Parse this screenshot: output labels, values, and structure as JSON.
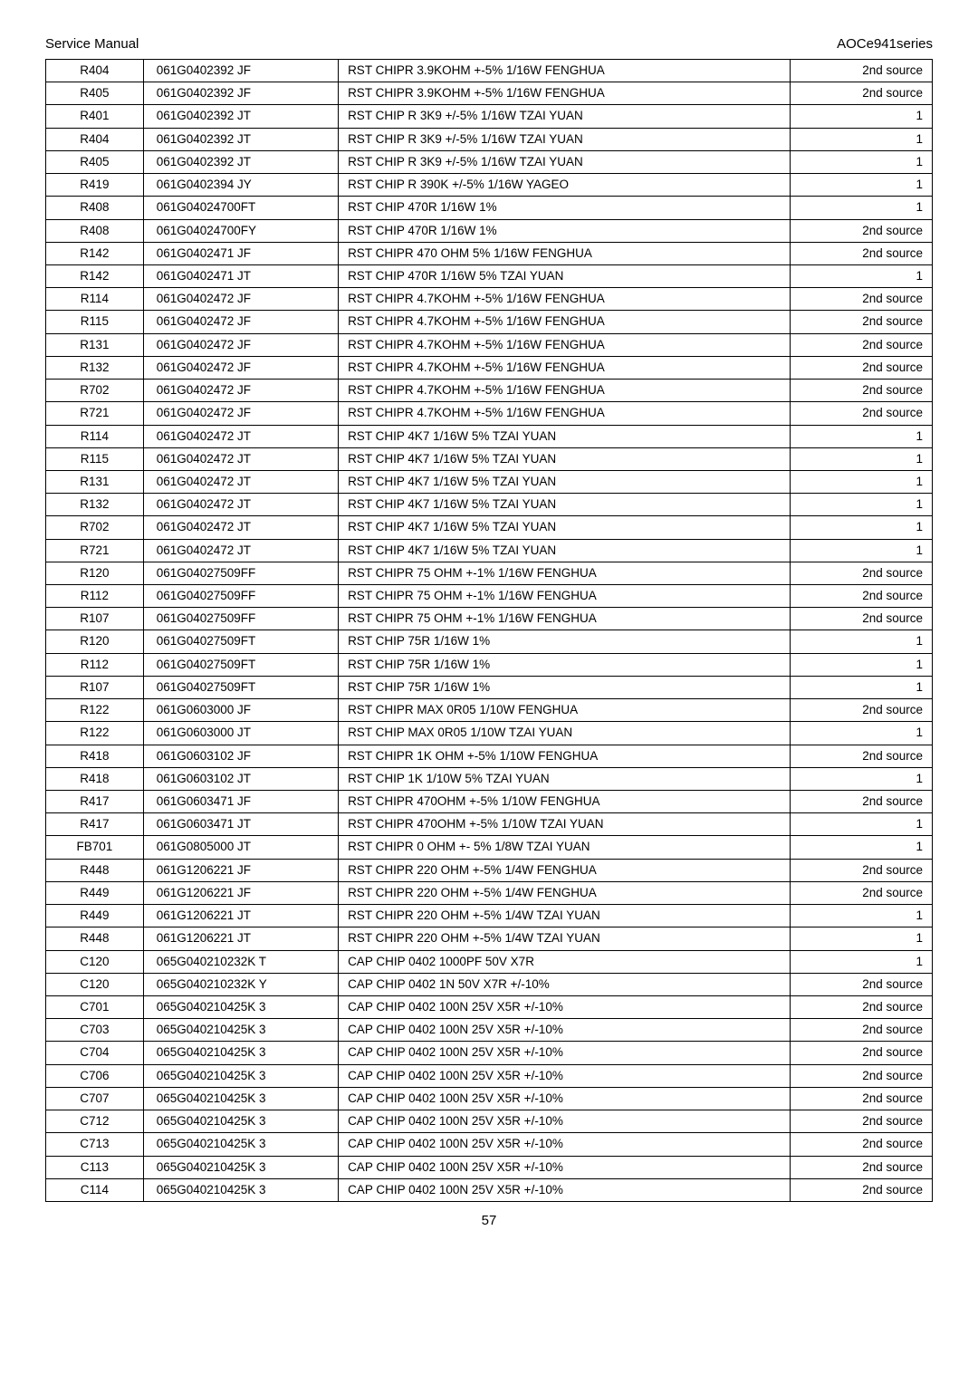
{
  "header": {
    "left": "Service Manual",
    "right": "AOCe941series"
  },
  "footer": {
    "page": "57"
  },
  "rows": [
    {
      "ref": "R404",
      "part": "061G0402392 JF",
      "desc": "RST CHIPR 3.9KOHM +-5% 1/16W FENGHUA",
      "src": "2nd source"
    },
    {
      "ref": "R405",
      "part": "061G0402392 JF",
      "desc": "RST CHIPR 3.9KOHM +-5% 1/16W FENGHUA",
      "src": "2nd source"
    },
    {
      "ref": "R401",
      "part": "061G0402392 JT",
      "desc": "RST CHIP R 3K9 +/-5% 1/16W    TZAI YUAN",
      "src": "1"
    },
    {
      "ref": "R404",
      "part": "061G0402392 JT",
      "desc": "RST CHIP R 3K9 +/-5% 1/16W    TZAI YUAN",
      "src": "1"
    },
    {
      "ref": "R405",
      "part": "061G0402392 JT",
      "desc": "RST CHIP R 3K9 +/-5% 1/16W    TZAI YUAN",
      "src": "1"
    },
    {
      "ref": "R419",
      "part": "061G0402394 JY",
      "desc": "RST CHIP R 390K +/-5% 1/16W YAGEO",
      "src": "1"
    },
    {
      "ref": "R408",
      "part": "061G04024700FT",
      "desc": "RST CHIP 470R 1/16W 1%",
      "src": "1"
    },
    {
      "ref": "R408",
      "part": "061G04024700FY",
      "desc": "RST CHIP 470R 1/16W 1%",
      "src": "2nd source"
    },
    {
      "ref": "R142",
      "part": "061G0402471 JF",
      "desc": "RST CHIPR 470 OHM 5% 1/16W FENGHUA",
      "src": "2nd source"
    },
    {
      "ref": "R142",
      "part": "061G0402471 JT",
      "desc": "RST CHIP 470R 1/16W 5% TZAI YUAN",
      "src": "1"
    },
    {
      "ref": "R114",
      "part": "061G0402472 JF",
      "desc": "RST CHIPR 4.7KOHM +-5% 1/16W FENGHUA",
      "src": "2nd source"
    },
    {
      "ref": "R115",
      "part": "061G0402472 JF",
      "desc": "RST CHIPR 4.7KOHM +-5% 1/16W FENGHUA",
      "src": "2nd source"
    },
    {
      "ref": "R131",
      "part": "061G0402472 JF",
      "desc": "RST CHIPR 4.7KOHM +-5% 1/16W FENGHUA",
      "src": "2nd source"
    },
    {
      "ref": "R132",
      "part": "061G0402472 JF",
      "desc": "RST CHIPR 4.7KOHM +-5% 1/16W FENGHUA",
      "src": "2nd source"
    },
    {
      "ref": "R702",
      "part": "061G0402472 JF",
      "desc": "RST CHIPR 4.7KOHM +-5% 1/16W FENGHUA",
      "src": "2nd source"
    },
    {
      "ref": "R721",
      "part": "061G0402472 JF",
      "desc": "RST CHIPR 4.7KOHM +-5% 1/16W FENGHUA",
      "src": "2nd source"
    },
    {
      "ref": "R114",
      "part": "061G0402472 JT",
      "desc": "RST CHIP 4K7 1/16W 5% TZAI YUAN",
      "src": "1"
    },
    {
      "ref": "R115",
      "part": "061G0402472 JT",
      "desc": "RST CHIP 4K7 1/16W 5% TZAI YUAN",
      "src": "1"
    },
    {
      "ref": "R131",
      "part": "061G0402472 JT",
      "desc": "RST CHIP 4K7 1/16W 5% TZAI YUAN",
      "src": "1"
    },
    {
      "ref": "R132",
      "part": "061G0402472 JT",
      "desc": "RST CHIP 4K7 1/16W 5% TZAI YUAN",
      "src": "1"
    },
    {
      "ref": "R702",
      "part": "061G0402472 JT",
      "desc": "RST CHIP 4K7 1/16W 5% TZAI YUAN",
      "src": "1"
    },
    {
      "ref": "R721",
      "part": "061G0402472 JT",
      "desc": "RST CHIP 4K7 1/16W 5% TZAI YUAN",
      "src": "1"
    },
    {
      "ref": "R120",
      "part": "061G04027509FF",
      "desc": "RST CHIPR 75 OHM +-1% 1/16W FENGHUA",
      "src": "2nd source"
    },
    {
      "ref": "R112",
      "part": "061G04027509FF",
      "desc": "RST CHIPR 75 OHM +-1% 1/16W FENGHUA",
      "src": "2nd source"
    },
    {
      "ref": "R107",
      "part": "061G04027509FF",
      "desc": "RST CHIPR 75 OHM +-1% 1/16W FENGHUA",
      "src": "2nd source"
    },
    {
      "ref": "R120",
      "part": "061G04027509FT",
      "desc": "RST CHIP 75R 1/16W 1%",
      "src": "1"
    },
    {
      "ref": "R112",
      "part": "061G04027509FT",
      "desc": "RST CHIP 75R 1/16W 1%",
      "src": "1"
    },
    {
      "ref": "R107",
      "part": "061G04027509FT",
      "desc": "RST CHIP 75R 1/16W 1%",
      "src": "1"
    },
    {
      "ref": "R122",
      "part": "061G0603000 JF",
      "desc": "RST CHIPR MAX 0R05 1/10W FENGHUA",
      "src": "2nd source"
    },
    {
      "ref": "R122",
      "part": "061G0603000 JT",
      "desc": "RST CHIP MAX    0R05 1/10W TZAI YUAN",
      "src": "1"
    },
    {
      "ref": "R418",
      "part": "061G0603102 JF",
      "desc": "RST CHIPR 1K OHM +-5% 1/10W FENGHUA",
      "src": "2nd source"
    },
    {
      "ref": "R418",
      "part": "061G0603102 JT",
      "desc": "RST CHIP 1K 1/10W 5% TZAI YUAN",
      "src": "1"
    },
    {
      "ref": "R417",
      "part": "061G0603471 JF",
      "desc": "RST CHIPR 470OHM +-5% 1/10W FENGHUA",
      "src": "2nd source"
    },
    {
      "ref": "R417",
      "part": "061G0603471 JT",
      "desc": "RST CHIPR 470OHM +-5% 1/10W TZAI YUAN",
      "src": "1"
    },
    {
      "ref": "FB701",
      "part": "061G0805000 JT",
      "desc": "RST CHIPR 0 OHM +- 5% 1/8W      TZAI YUAN",
      "src": "1"
    },
    {
      "ref": "R448",
      "part": "061G1206221 JF",
      "desc": "RST CHIPR 220 OHM +-5% 1/4W FENGHUA",
      "src": "2nd source"
    },
    {
      "ref": "R449",
      "part": "061G1206221 JF",
      "desc": "RST CHIPR 220 OHM +-5% 1/4W FENGHUA",
      "src": "2nd source"
    },
    {
      "ref": "R449",
      "part": "061G1206221 JT",
      "desc": "RST CHIPR 220 OHM +-5% 1/4W TZAI YUAN",
      "src": "1"
    },
    {
      "ref": "R448",
      "part": "061G1206221 JT",
      "desc": "RST CHIPR 220 OHM +-5% 1/4W TZAI YUAN",
      "src": "1"
    },
    {
      "ref": "C120",
      "part": "065G040210232K      T",
      "desc": "CAP CHIP 0402 1000PF 50V X7R",
      "src": "1"
    },
    {
      "ref": "C120",
      "part": "065G040210232K      Y",
      "desc": "CAP CHIP 0402 1N 50V X7R +/-10%",
      "src": "2nd source"
    },
    {
      "ref": "C701",
      "part": "065G040210425K      3",
      "desc": "CAP CHIP 0402 100N 25V X5R +/-10%",
      "src": "2nd source"
    },
    {
      "ref": "C703",
      "part": "065G040210425K      3",
      "desc": "CAP CHIP 0402 100N 25V X5R +/-10%",
      "src": "2nd source"
    },
    {
      "ref": "C704",
      "part": "065G040210425K      3",
      "desc": "CAP CHIP 0402 100N 25V X5R +/-10%",
      "src": "2nd source"
    },
    {
      "ref": "C706",
      "part": "065G040210425K      3",
      "desc": "CAP CHIP 0402 100N 25V X5R +/-10%",
      "src": "2nd source"
    },
    {
      "ref": "C707",
      "part": "065G040210425K      3",
      "desc": "CAP CHIP 0402 100N 25V X5R +/-10%",
      "src": "2nd source"
    },
    {
      "ref": "C712",
      "part": "065G040210425K      3",
      "desc": "CAP CHIP 0402 100N 25V X5R +/-10%",
      "src": "2nd source"
    },
    {
      "ref": "C713",
      "part": "065G040210425K      3",
      "desc": "CAP CHIP 0402 100N 25V X5R +/-10%",
      "src": "2nd source"
    },
    {
      "ref": "C113",
      "part": "065G040210425K      3",
      "desc": "CAP CHIP 0402 100N 25V X5R +/-10%",
      "src": "2nd source"
    },
    {
      "ref": "C114",
      "part": "065G040210425K      3",
      "desc": "CAP CHIP 0402 100N 25V X5R +/-10%",
      "src": "2nd source"
    }
  ]
}
